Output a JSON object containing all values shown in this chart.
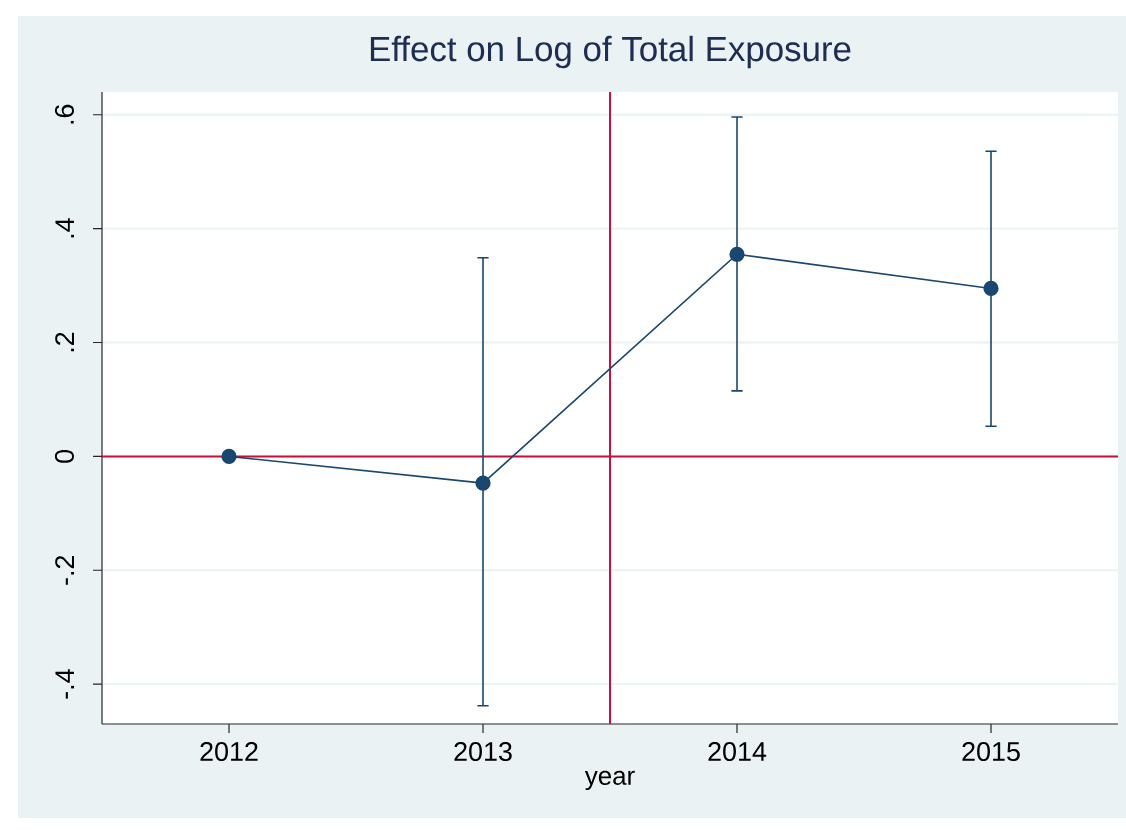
{
  "chart_data": {
    "type": "line",
    "title": "Effect on Log of Total Exposure",
    "xlabel": "year",
    "x": [
      2012,
      2013,
      2014,
      2015
    ],
    "series": [
      {
        "color": "#1a476f",
        "values": [
          0,
          -0.047,
          0.355,
          0.295
        ],
        "errors": [
          null,
          [
            -0.438,
            0.349
          ],
          [
            0.115,
            0.596
          ],
          [
            0.053,
            0.536
          ]
        ]
      }
    ],
    "xlim": [
      2011.5,
      2015.5
    ],
    "xticks": [
      2012,
      2013,
      2014,
      2015
    ],
    "ylim": [
      -0.47,
      0.64
    ],
    "yticks": [
      {
        "value": -0.4,
        "label": "-.4"
      },
      {
        "value": -0.2,
        "label": "-.2"
      },
      0,
      {
        "value": 0.2,
        "label": ".2"
      },
      {
        "value": 0.4,
        "label": ".4"
      },
      {
        "value": 0.6,
        "label": ".6"
      }
    ],
    "ref_lines": [
      {
        "axis": "y",
        "value": 0,
        "color": "#c80f3c"
      },
      {
        "axis": "x",
        "value": 2013.5,
        "color": "#c80f3c"
      }
    ],
    "grid": "y",
    "marker": "circle",
    "line_style": "solid"
  }
}
